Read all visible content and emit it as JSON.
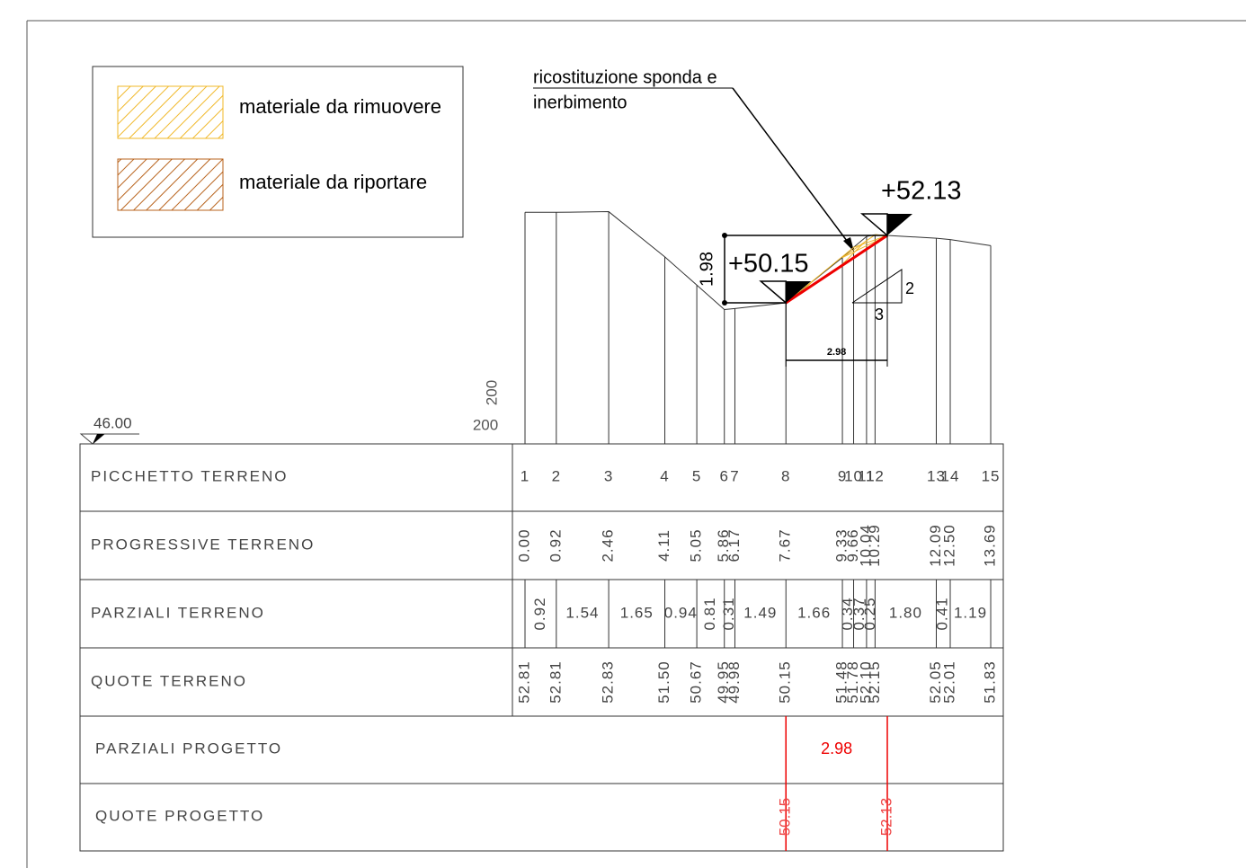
{
  "legend": {
    "items": [
      {
        "label": "materiale da rimuovere"
      },
      {
        "label": "materiale da riportare"
      }
    ]
  },
  "annotation": {
    "lines": [
      "ricostituzione sponda e",
      "inerbimento"
    ]
  },
  "section": {
    "project_top": "+52.13",
    "project_bottom": "+50.15",
    "height_dim": "1.98",
    "width_dim": "2.98",
    "slope_rise": "2",
    "slope_run": "3",
    "scale_vertical": "200",
    "scale_horizontal": "200",
    "datum": "46.00"
  },
  "table": {
    "row_labels": [
      "PICCHETTO TERRENO",
      "PROGRESSIVE TERRENO",
      "PARZIALI TERRENO",
      "QUOTE TERRENO",
      "PARZIALI PROGETTO",
      "QUOTE PROGETTO"
    ],
    "stations": [
      {
        "picchetto": "1",
        "progressive": "0.00",
        "quota": "52.81"
      },
      {
        "picchetto": "2",
        "progressive": "0.92",
        "quota": "52.81"
      },
      {
        "picchetto": "3",
        "progressive": "2.46",
        "quota": "52.83"
      },
      {
        "picchetto": "4",
        "progressive": "4.11",
        "quota": "51.50"
      },
      {
        "picchetto": "5",
        "progressive": "5.05",
        "quota": "50.67"
      },
      {
        "picchetto": "6",
        "progressive": "5.86",
        "quota": "49.95"
      },
      {
        "picchetto": "7",
        "progressive": "6.17",
        "quota": "49.98"
      },
      {
        "picchetto": "8",
        "progressive": "7.67",
        "quota": "50.15"
      },
      {
        "picchetto": "9",
        "progressive": "9.33",
        "quota": "51.48"
      },
      {
        "picchetto": "10",
        "progressive": "9.66",
        "quota": "51.78"
      },
      {
        "picchetto": "11",
        "progressive": "10.04",
        "quota": "52.10"
      },
      {
        "picchetto": "12",
        "progressive": "10.29",
        "quota": "52.15"
      },
      {
        "picchetto": "13",
        "progressive": "12.09",
        "quota": "52.05"
      },
      {
        "picchetto": "14",
        "progressive": "12.50",
        "quota": "52.01"
      },
      {
        "picchetto": "15",
        "progressive": "13.69",
        "quota": "51.83"
      }
    ],
    "parziali": [
      "0.92",
      "1.54",
      "1.65",
      "0.94",
      "0.81",
      "0.31",
      "1.49",
      "1.66",
      "0.34",
      "0.37",
      "0.25",
      "1.80",
      "0.41",
      "1.19"
    ],
    "progetto": {
      "parziali": [
        "2.98"
      ],
      "quote": [
        "50.15",
        "52.13"
      ]
    }
  }
}
